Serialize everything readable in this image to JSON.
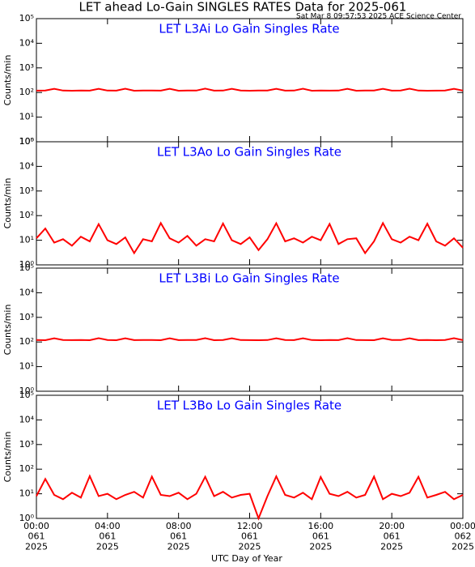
{
  "title": "LET ahead Lo-Gain SINGLES RATES Data for 2025-061",
  "subtitle": "Sat Mar  8 09:57:53 2025 ACE Science Center",
  "xlabel": "UTC Day of Year",
  "chart_data": [
    {
      "type": "line",
      "title": "LET L3Ai Lo Gain Singles Rate",
      "ylabel": "Counts/min",
      "log_y": true,
      "ylim": [
        1,
        100000
      ],
      "yticks": [
        {
          "value": 1,
          "label": "10⁰"
        },
        {
          "value": 10,
          "label": "10¹"
        },
        {
          "value": 100,
          "label": "10²"
        },
        {
          "value": 1000,
          "label": "10³"
        },
        {
          "value": 10000,
          "label": "10⁴"
        },
        {
          "value": 100000,
          "label": "10⁵"
        }
      ],
      "xlim": [
        0,
        24
      ],
      "x": [
        0,
        0.5,
        1,
        1.5,
        2,
        2.5,
        3,
        3.5,
        4,
        4.5,
        5,
        5.5,
        6,
        6.5,
        7,
        7.5,
        8,
        8.5,
        9,
        9.5,
        10,
        10.5,
        11,
        11.5,
        12,
        12.5,
        13,
        13.5,
        14,
        14.5,
        15,
        15.5,
        16,
        16.5,
        17,
        17.5,
        18,
        18.5,
        19,
        19.5,
        20,
        20.5,
        21,
        21.5,
        22,
        22.5,
        23,
        23.5,
        24
      ],
      "series": [
        {
          "color": "#ff0000",
          "values": [
            119,
            121,
            142,
            120,
            118,
            121,
            119,
            141,
            120,
            119,
            143,
            118,
            121,
            120,
            119,
            142,
            118,
            121,
            120,
            144,
            119,
            120,
            142,
            121,
            118,
            120,
            121,
            141,
            119,
            120,
            143,
            118,
            121,
            119,
            120,
            142,
            118,
            120,
            121,
            141,
            119,
            121,
            143,
            120,
            118,
            119,
            121,
            142,
            120
          ]
        }
      ]
    },
    {
      "type": "line",
      "title": "LET L3Ao Lo Gain Singles Rate",
      "ylabel": "Counts/min",
      "log_y": true,
      "ylim": [
        1,
        100000
      ],
      "yticks": [
        {
          "value": 1,
          "label": "10⁰"
        },
        {
          "value": 10,
          "label": "10¹"
        },
        {
          "value": 100,
          "label": "10²"
        },
        {
          "value": 1000,
          "label": "10³"
        },
        {
          "value": 10000,
          "label": "10⁴"
        },
        {
          "value": 100000,
          "label": "10⁵"
        }
      ],
      "xlim": [
        0,
        24
      ],
      "x": [
        0,
        0.5,
        1,
        1.5,
        2,
        2.5,
        3,
        3.5,
        4,
        4.5,
        5,
        5.5,
        6,
        6.5,
        7,
        7.5,
        8,
        8.5,
        9,
        9.5,
        10,
        10.5,
        11,
        11.5,
        12,
        12.5,
        13,
        13.5,
        14,
        14.5,
        15,
        15.5,
        16,
        16.5,
        17,
        17.5,
        18,
        18.5,
        19,
        19.5,
        20,
        20.5,
        21,
        21.5,
        22,
        22.5,
        23,
        23.5,
        24
      ],
      "series": [
        {
          "color": "#ff0000",
          "values": [
            12,
            30,
            8,
            11,
            6,
            14,
            9,
            45,
            10,
            7,
            13,
            3,
            11,
            9,
            50,
            12,
            8,
            15,
            6,
            11,
            9,
            48,
            10,
            7,
            13,
            4,
            11,
            49,
            9,
            12,
            8,
            14,
            10,
            46,
            7,
            11,
            12,
            3,
            9,
            50,
            11,
            8,
            14,
            10,
            47,
            9,
            6,
            12,
            5
          ]
        }
      ]
    },
    {
      "type": "line",
      "title": "LET L3Bi Lo Gain Singles Rate",
      "ylabel": "Counts/min",
      "log_y": true,
      "ylim": [
        1,
        100000
      ],
      "yticks": [
        {
          "value": 1,
          "label": "10⁰"
        },
        {
          "value": 10,
          "label": "10¹"
        },
        {
          "value": 100,
          "label": "10²"
        },
        {
          "value": 1000,
          "label": "10³"
        },
        {
          "value": 10000,
          "label": "10⁴"
        },
        {
          "value": 100000,
          "label": "10⁵"
        }
      ],
      "xlim": [
        0,
        24
      ],
      "x": [
        0,
        0.5,
        1,
        1.5,
        2,
        2.5,
        3,
        3.5,
        4,
        4.5,
        5,
        5.5,
        6,
        6.5,
        7,
        7.5,
        8,
        8.5,
        9,
        9.5,
        10,
        10.5,
        11,
        11.5,
        12,
        12.5,
        13,
        13.5,
        14,
        14.5,
        15,
        15.5,
        16,
        16.5,
        17,
        17.5,
        18,
        18.5,
        19,
        19.5,
        20,
        20.5,
        21,
        21.5,
        22,
        22.5,
        23,
        23.5,
        24
      ],
      "series": [
        {
          "color": "#ff0000",
          "values": [
            120,
            118,
            141,
            121,
            119,
            120,
            118,
            143,
            121,
            118,
            142,
            119,
            120,
            121,
            118,
            141,
            119,
            120,
            121,
            143,
            118,
            121,
            141,
            120,
            119,
            118,
            120,
            142,
            121,
            119,
            141,
            120,
            118,
            121,
            119,
            143,
            120,
            119,
            118,
            142,
            121,
            120,
            141,
            119,
            120,
            118,
            121,
            143,
            119
          ]
        }
      ]
    },
    {
      "type": "line",
      "title": "LET L3Bo Lo Gain Singles Rate",
      "ylabel": "Counts/min",
      "log_y": true,
      "ylim": [
        1,
        100000
      ],
      "yticks": [
        {
          "value": 1,
          "label": "10⁰"
        },
        {
          "value": 10,
          "label": "10¹"
        },
        {
          "value": 100,
          "label": "10²"
        },
        {
          "value": 1000,
          "label": "10³"
        },
        {
          "value": 10000,
          "label": "10⁴"
        },
        {
          "value": 100000,
          "label": "10⁵"
        }
      ],
      "xlim": [
        0,
        24
      ],
      "xticks": [
        {
          "value": 0,
          "label": "00:00\n061\n2025"
        },
        {
          "value": 4,
          "label": "04:00\n061\n2025"
        },
        {
          "value": 8,
          "label": "08:00\n061\n2025"
        },
        {
          "value": 12,
          "label": "12:00\n061\n2025"
        },
        {
          "value": 16,
          "label": "16:00\n061\n2025"
        },
        {
          "value": 20,
          "label": "20:00\n061\n2025"
        },
        {
          "value": 24,
          "label": "00:00\n062\n2025"
        }
      ],
      "x": [
        0,
        0.5,
        1,
        1.5,
        2,
        2.5,
        3,
        3.5,
        4,
        4.5,
        5,
        5.5,
        6,
        6.5,
        7,
        7.5,
        8,
        8.5,
        9,
        9.5,
        10,
        10.5,
        11,
        11.5,
        12,
        12.5,
        13,
        13.5,
        14,
        14.5,
        15,
        15.5,
        16,
        16.5,
        17,
        17.5,
        18,
        18.5,
        19,
        19.5,
        20,
        20.5,
        21,
        21.5,
        22,
        22.5,
        23,
        23.5,
        24
      ],
      "series": [
        {
          "color": "#ff0000",
          "values": [
            8,
            40,
            9,
            6,
            11,
            7,
            52,
            8,
            10,
            6,
            9,
            12,
            7,
            50,
            9,
            8,
            11,
            6,
            10,
            49,
            8,
            12,
            7,
            9,
            10,
            1,
            8,
            51,
            9,
            7,
            11,
            6,
            48,
            10,
            8,
            12,
            7,
            9,
            50,
            6,
            10,
            8,
            11,
            49,
            7,
            9,
            12,
            6,
            9
          ]
        }
      ]
    }
  ]
}
